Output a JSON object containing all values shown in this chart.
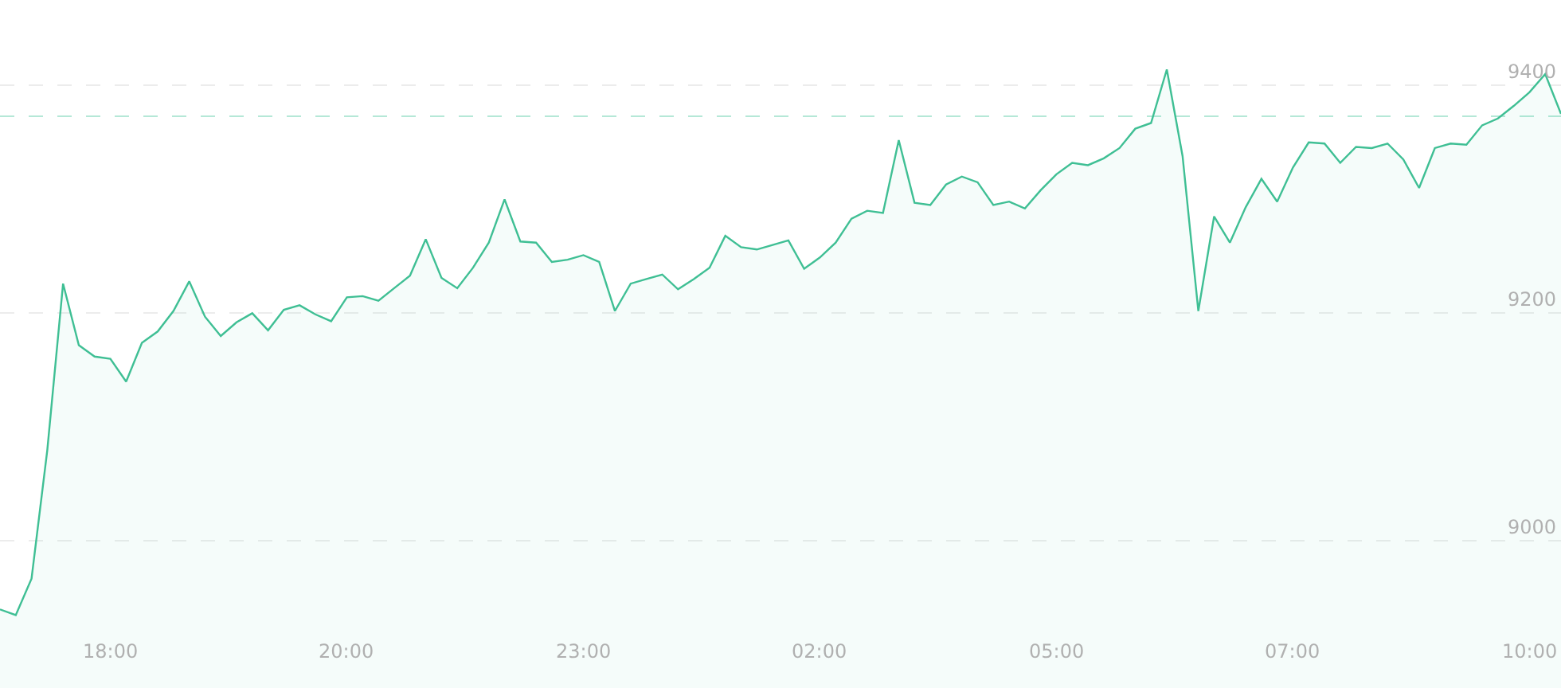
{
  "chart_data": {
    "type": "area",
    "categories": [
      null,
      null,
      null,
      null,
      null,
      null,
      null,
      "18:00",
      null,
      null,
      null,
      null,
      null,
      null,
      null,
      null,
      null,
      null,
      null,
      null,
      null,
      null,
      "20:00",
      null,
      null,
      null,
      null,
      null,
      null,
      null,
      null,
      null,
      null,
      null,
      null,
      null,
      null,
      "23:00",
      null,
      null,
      null,
      null,
      null,
      null,
      null,
      null,
      null,
      null,
      null,
      null,
      null,
      null,
      "02:00",
      null,
      null,
      null,
      null,
      null,
      null,
      null,
      null,
      null,
      null,
      null,
      null,
      null,
      null,
      "05:00",
      null,
      null,
      null,
      null,
      null,
      null,
      null,
      null,
      null,
      null,
      null,
      null,
      null,
      null,
      "07:00",
      null,
      null,
      null,
      null,
      null,
      null,
      null,
      null,
      null,
      null,
      null,
      null,
      null,
      null,
      "10:00",
      null,
      null
    ],
    "values": [
      8940,
      8935,
      8967,
      9080,
      9226,
      9172,
      9162,
      9160,
      9140,
      9174,
      9184,
      9202,
      9228,
      9197,
      9180,
      9192,
      9200,
      9185,
      9203,
      9207,
      9199,
      9193,
      9214,
      9215,
      9211,
      9222,
      9233,
      9265,
      9231,
      9222,
      9240,
      9262,
      9300,
      9263,
      9262,
      9245,
      9247,
      9251,
      9245,
      9202,
      9226,
      9230,
      9234,
      9221,
      9230,
      9240,
      9268,
      9258,
      9256,
      9260,
      9264,
      9239,
      9249,
      9262,
      9283,
      9290,
      9288,
      9352,
      9297,
      9295,
      9313,
      9320,
      9315,
      9295,
      9298,
      9292,
      9308,
      9322,
      9332,
      9330,
      9336,
      9345,
      9362,
      9367,
      9414,
      9338,
      9202,
      9285,
      9262,
      9293,
      9318,
      9298,
      9328,
      9350,
      9349,
      9332,
      9346,
      9345,
      9349,
      9335,
      9310,
      9345,
      9349,
      9348,
      9365,
      9371,
      9382,
      9394,
      9410,
      9375
    ],
    "color": "#3fbf94",
    "ylim": [
      8871,
      9475
    ],
    "yticks": [
      9000,
      9200,
      9400
    ],
    "grid": "y",
    "ref_lines": [
      {
        "axis": "y",
        "value": 9373,
        "color": "#b5e8d7",
        "line_style": "dashed"
      }
    ]
  }
}
